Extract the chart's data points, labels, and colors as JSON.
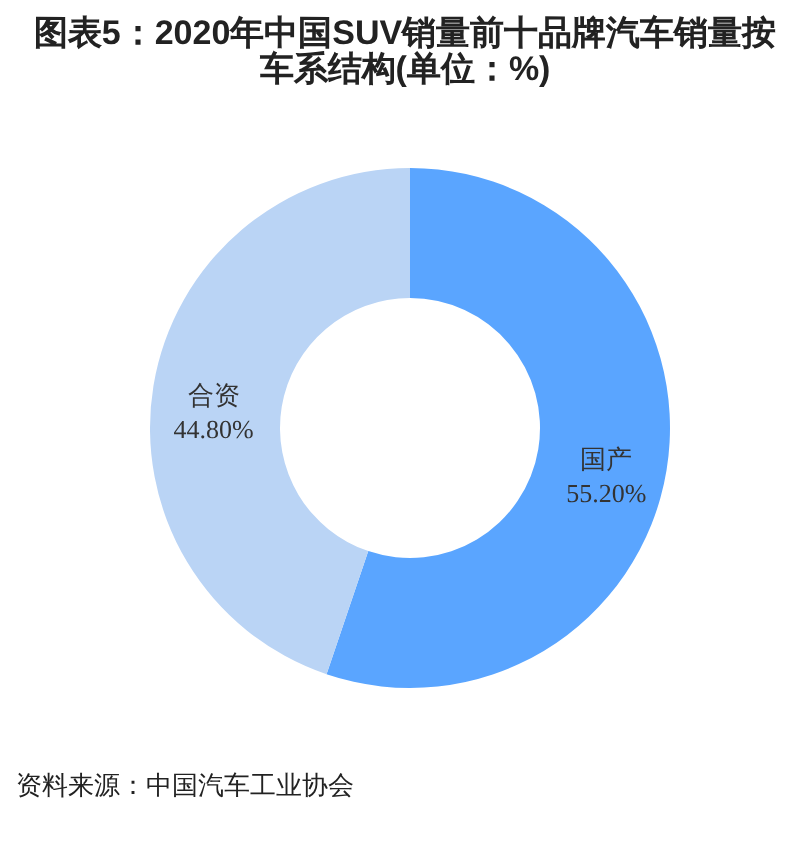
{
  "chart_data": {
    "type": "donut",
    "title": "图表5：2020年中国SUV销量前十品牌汽车销量按车系结构(单位：%)",
    "categories": [
      "国产",
      "合资"
    ],
    "values": [
      55.2,
      44.8
    ],
    "colors": [
      "#5aa5ff",
      "#bad4f5"
    ],
    "value_labels": [
      "55.20%",
      "44.80%"
    ],
    "annotations": [
      "资料来源：中国汽车工业协会"
    ]
  }
}
